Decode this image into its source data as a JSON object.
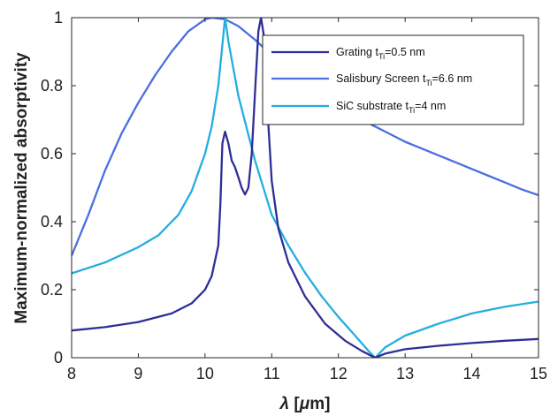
{
  "chart_data": {
    "type": "line",
    "title": "",
    "xlabel": "λ [μm]",
    "xlabel_parts": {
      "symbol": "λ",
      "open": " [",
      "mu": "μ",
      "unit": "m]"
    },
    "ylabel": "Maximum-normalized absorptivity",
    "xlim": [
      8,
      15
    ],
    "ylim": [
      0,
      1
    ],
    "xticks": [
      8,
      9,
      10,
      11,
      12,
      13,
      14,
      15
    ],
    "yticks": [
      0,
      0.2,
      0.4,
      0.6,
      0.8,
      1
    ],
    "ytick_labels": [
      "0",
      "0.2",
      "0.4",
      "0.6",
      "0.8",
      "1"
    ],
    "grid": false,
    "legend_position": "top-right",
    "series": [
      {
        "name": "Grating t_Ti=0.5 nm",
        "legend": {
          "main": "Grating t",
          "sub": "Ti",
          "rest": "=0.5 nm"
        },
        "color": "#2e2e96",
        "points": [
          [
            8.0,
            0.08
          ],
          [
            8.5,
            0.09
          ],
          [
            9.0,
            0.105
          ],
          [
            9.5,
            0.13
          ],
          [
            9.8,
            0.16
          ],
          [
            10.0,
            0.2
          ],
          [
            10.1,
            0.24
          ],
          [
            10.2,
            0.33
          ],
          [
            10.23,
            0.45
          ],
          [
            10.26,
            0.63
          ],
          [
            10.3,
            0.665
          ],
          [
            10.35,
            0.63
          ],
          [
            10.4,
            0.58
          ],
          [
            10.45,
            0.56
          ],
          [
            10.5,
            0.53
          ],
          [
            10.55,
            0.5
          ],
          [
            10.6,
            0.48
          ],
          [
            10.65,
            0.5
          ],
          [
            10.7,
            0.6
          ],
          [
            10.75,
            0.78
          ],
          [
            10.8,
            0.96
          ],
          [
            10.84,
            1.0
          ],
          [
            10.88,
            0.95
          ],
          [
            10.93,
            0.75
          ],
          [
            11.0,
            0.52
          ],
          [
            11.1,
            0.38
          ],
          [
            11.25,
            0.28
          ],
          [
            11.5,
            0.18
          ],
          [
            11.8,
            0.1
          ],
          [
            12.1,
            0.05
          ],
          [
            12.35,
            0.02
          ],
          [
            12.55,
            0.0
          ],
          [
            12.7,
            0.012
          ],
          [
            13.0,
            0.025
          ],
          [
            13.5,
            0.035
          ],
          [
            14.0,
            0.043
          ],
          [
            14.5,
            0.05
          ],
          [
            15.0,
            0.055
          ]
        ]
      },
      {
        "name": "Salisbury Screen t_Ti=6.6 nm",
        "legend": {
          "main": "Salisbury Screen t",
          "sub": "Ti",
          "rest": "=6.6 nm"
        },
        "color": "#4b6fe0",
        "points": [
          [
            8.0,
            0.3
          ],
          [
            8.25,
            0.42
          ],
          [
            8.5,
            0.55
          ],
          [
            8.75,
            0.66
          ],
          [
            9.0,
            0.75
          ],
          [
            9.25,
            0.83
          ],
          [
            9.5,
            0.9
          ],
          [
            9.75,
            0.96
          ],
          [
            10.0,
            0.995
          ],
          [
            10.1,
            1.0
          ],
          [
            10.3,
            0.995
          ],
          [
            10.5,
            0.975
          ],
          [
            10.75,
            0.935
          ],
          [
            11.0,
            0.89
          ],
          [
            11.25,
            0.845
          ],
          [
            11.5,
            0.8
          ],
          [
            11.75,
            0.765
          ],
          [
            12.0,
            0.735
          ],
          [
            12.25,
            0.71
          ],
          [
            12.5,
            0.685
          ],
          [
            12.75,
            0.66
          ],
          [
            13.0,
            0.635
          ],
          [
            13.25,
            0.615
          ],
          [
            13.5,
            0.595
          ],
          [
            13.75,
            0.575
          ],
          [
            14.0,
            0.555
          ],
          [
            14.25,
            0.535
          ],
          [
            14.5,
            0.515
          ],
          [
            14.75,
            0.495
          ],
          [
            15.0,
            0.478
          ]
        ]
      },
      {
        "name": "SiC substrate t_Ti=4 nm",
        "legend": {
          "main": "SiC substrate t",
          "sub": "Ti",
          "rest": "=4 nm"
        },
        "color": "#24aee0",
        "points": [
          [
            8.0,
            0.248
          ],
          [
            8.5,
            0.28
          ],
          [
            9.0,
            0.325
          ],
          [
            9.3,
            0.36
          ],
          [
            9.6,
            0.42
          ],
          [
            9.8,
            0.49
          ],
          [
            10.0,
            0.6
          ],
          [
            10.1,
            0.68
          ],
          [
            10.2,
            0.8
          ],
          [
            10.26,
            0.92
          ],
          [
            10.3,
            1.0
          ],
          [
            10.35,
            0.93
          ],
          [
            10.5,
            0.77
          ],
          [
            10.75,
            0.58
          ],
          [
            11.0,
            0.42
          ],
          [
            11.25,
            0.33
          ],
          [
            11.5,
            0.25
          ],
          [
            11.75,
            0.18
          ],
          [
            12.0,
            0.12
          ],
          [
            12.25,
            0.065
          ],
          [
            12.45,
            0.02
          ],
          [
            12.55,
            0.0
          ],
          [
            12.7,
            0.03
          ],
          [
            13.0,
            0.065
          ],
          [
            13.5,
            0.1
          ],
          [
            14.0,
            0.13
          ],
          [
            14.5,
            0.15
          ],
          [
            15.0,
            0.165
          ]
        ]
      }
    ]
  }
}
